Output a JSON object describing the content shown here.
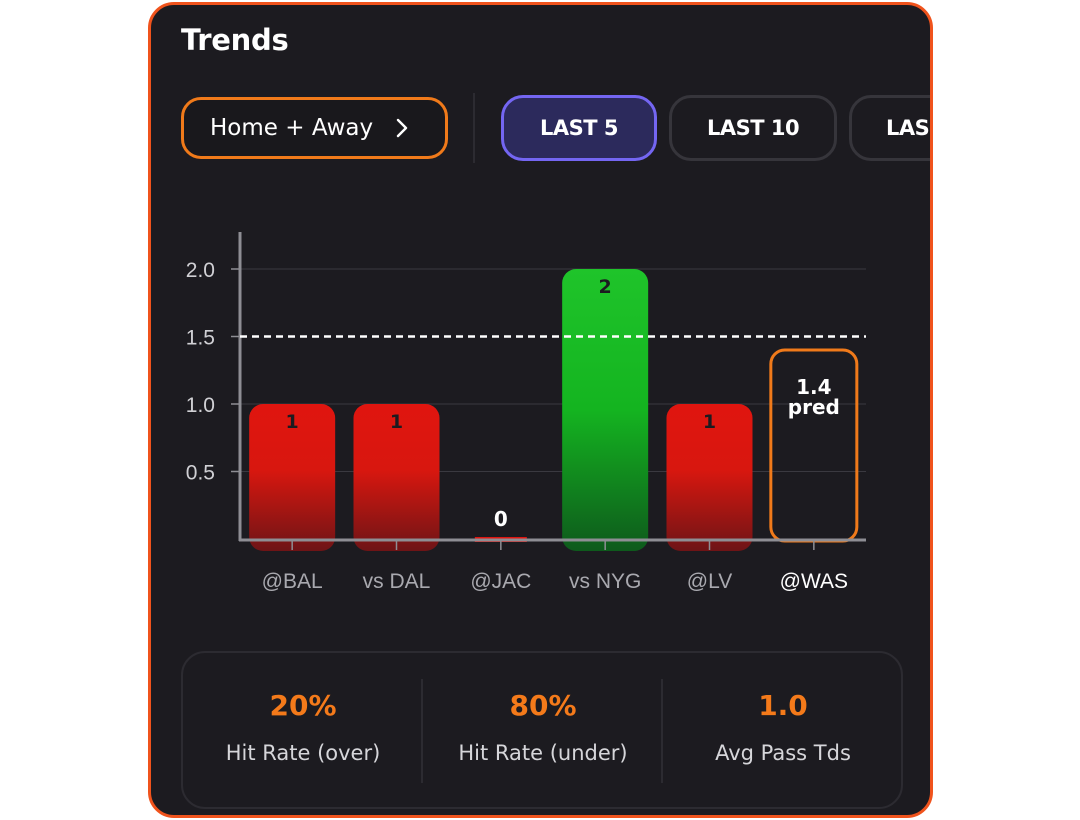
{
  "panel": {
    "title": "Trends"
  },
  "filter": {
    "label": "Home + Away"
  },
  "tabs": [
    {
      "label": "LAST 5",
      "active": true
    },
    {
      "label": "LAST 10",
      "active": false
    },
    {
      "label": "LAS",
      "active": false
    }
  ],
  "colors": {
    "accent": "#f0531c",
    "over": "#1fc42a",
    "under": "#e0150f",
    "active_tab": "#7466f2",
    "stat_value": "#f47a1a"
  },
  "chart_data": {
    "type": "bar",
    "categories": [
      "@BAL",
      "vs DAL",
      "@JAC",
      "vs NYG",
      "@LV",
      "@WAS"
    ],
    "values": [
      1,
      1,
      0,
      2,
      1,
      null
    ],
    "value_labels": [
      "1",
      "1",
      "0",
      "2",
      "1",
      ""
    ],
    "status": [
      "under",
      "under",
      "under",
      "over",
      "under",
      "prediction"
    ],
    "prediction": {
      "category": "@WAS",
      "value": 1.4,
      "label_value": "1.4",
      "label_text": "pred"
    },
    "threshold": 1.5,
    "ylim": [
      0,
      2.3
    ],
    "yticks": [
      0.5,
      1.0,
      1.5,
      2.0
    ],
    "ytick_labels": [
      "0.5",
      "1.0",
      "1.5",
      "2.0"
    ],
    "grid": true,
    "title": "",
    "xlabel": "",
    "ylabel": ""
  },
  "stats": [
    {
      "value": "20%",
      "label": "Hit Rate (over)"
    },
    {
      "value": "80%",
      "label": "Hit Rate (under)"
    },
    {
      "value": "1.0",
      "label": "Avg Pass Tds"
    }
  ]
}
